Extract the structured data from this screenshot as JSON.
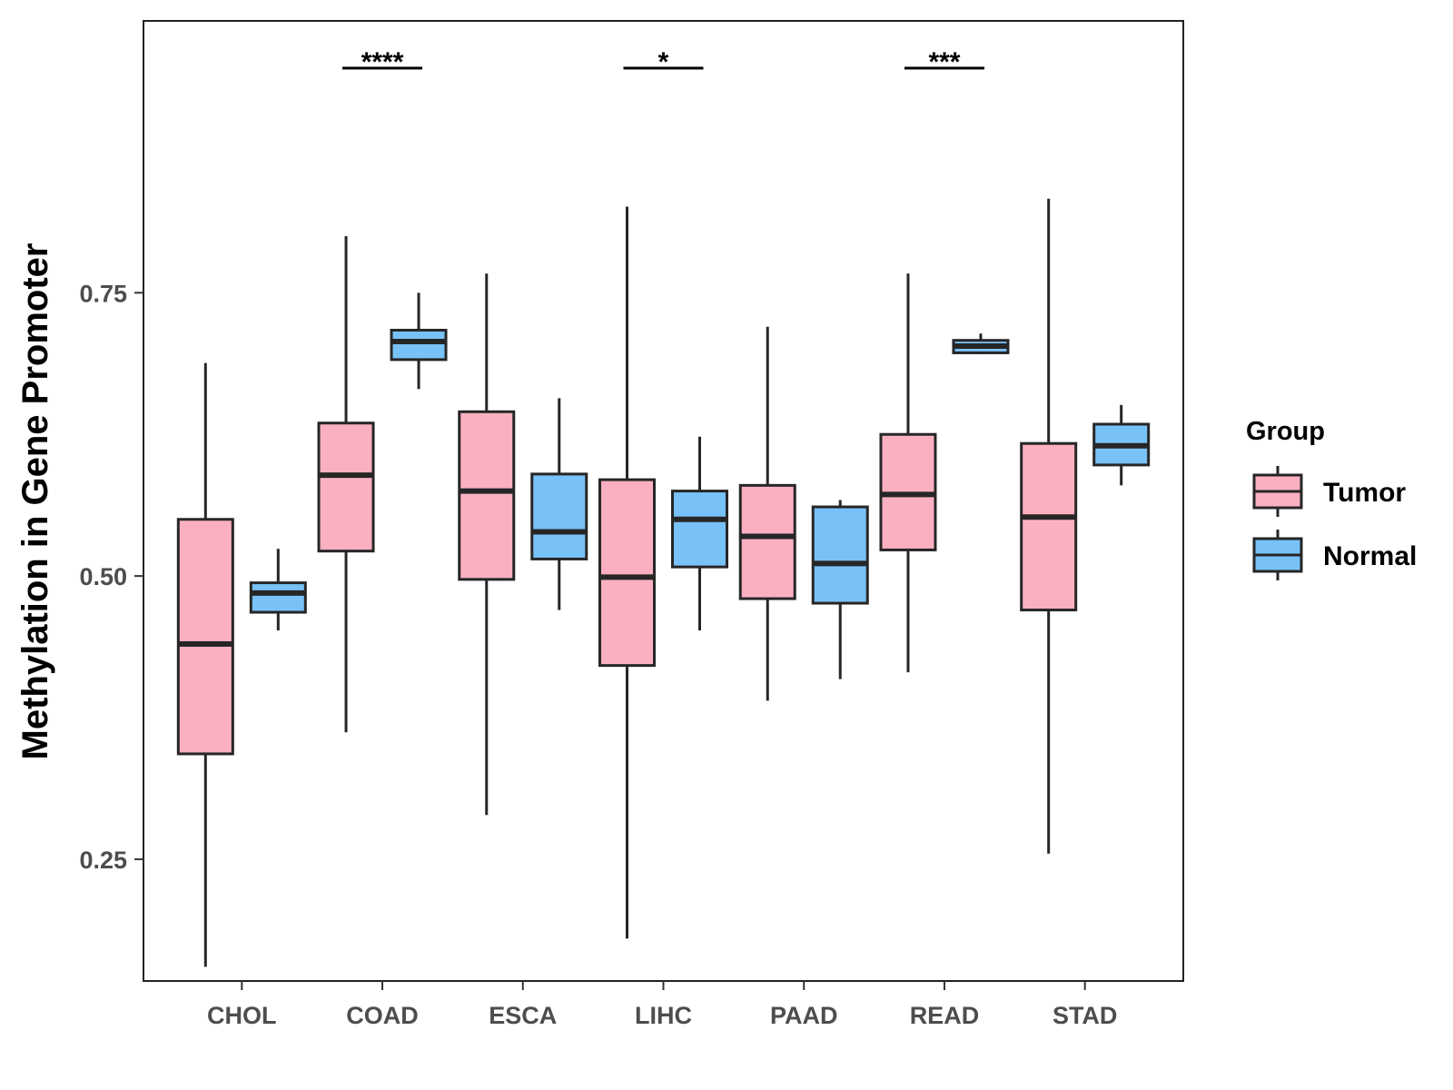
{
  "chart_data": {
    "type": "boxplot",
    "title": "",
    "xlabel": "",
    "ylabel": "Methylation in Gene Promoter",
    "ylim": [
      0.1425,
      0.99
    ],
    "yticks": [
      0.25,
      0.5,
      0.75
    ],
    "ytick_labels": [
      "0.25",
      "0.50",
      "0.75"
    ],
    "grid": false,
    "categories": [
      "CHOL",
      "COAD",
      "ESCA",
      "LIHC",
      "PAAD",
      "READ",
      "STAD"
    ],
    "legend": {
      "title": "Group",
      "position": "right",
      "entries": [
        {
          "name": "Tumor",
          "color": "#FBB0C2"
        },
        {
          "name": "Normal",
          "color": "#79C2F8"
        }
      ]
    },
    "series": [
      {
        "name": "Tumor",
        "color": "#FBB0C2",
        "boxes": [
          {
            "category": "CHOL",
            "min": 0.155,
            "q1": 0.343,
            "median": 0.44,
            "q3": 0.55,
            "max": 0.688
          },
          {
            "category": "COAD",
            "min": 0.362,
            "q1": 0.522,
            "median": 0.589,
            "q3": 0.635,
            "max": 0.8
          },
          {
            "category": "ESCA",
            "min": 0.289,
            "q1": 0.497,
            "median": 0.575,
            "q3": 0.645,
            "max": 0.767
          },
          {
            "category": "LIHC",
            "min": 0.18,
            "q1": 0.421,
            "median": 0.499,
            "q3": 0.585,
            "max": 0.826
          },
          {
            "category": "PAAD",
            "min": 0.39,
            "q1": 0.48,
            "median": 0.535,
            "q3": 0.58,
            "max": 0.72
          },
          {
            "category": "READ",
            "min": 0.415,
            "q1": 0.523,
            "median": 0.572,
            "q3": 0.625,
            "max": 0.767
          },
          {
            "category": "STAD",
            "min": 0.255,
            "q1": 0.47,
            "median": 0.552,
            "q3": 0.617,
            "max": 0.833
          }
        ]
      },
      {
        "name": "Normal",
        "color": "#79C2F8",
        "boxes": [
          {
            "category": "CHOL",
            "min": 0.452,
            "q1": 0.468,
            "median": 0.485,
            "q3": 0.494,
            "max": 0.524
          },
          {
            "category": "COAD",
            "min": 0.665,
            "q1": 0.691,
            "median": 0.707,
            "q3": 0.717,
            "max": 0.75
          },
          {
            "category": "ESCA",
            "min": 0.47,
            "q1": 0.515,
            "median": 0.539,
            "q3": 0.59,
            "max": 0.657
          },
          {
            "category": "LIHC",
            "min": 0.452,
            "q1": 0.508,
            "median": 0.55,
            "q3": 0.575,
            "max": 0.623
          },
          {
            "category": "PAAD",
            "min": 0.409,
            "q1": 0.476,
            "median": 0.511,
            "q3": 0.561,
            "max": 0.567
          },
          {
            "category": "READ",
            "min": 0.696,
            "q1": 0.697,
            "median": 0.703,
            "q3": 0.708,
            "max": 0.714
          },
          {
            "category": "STAD",
            "min": 0.58,
            "q1": 0.598,
            "median": 0.615,
            "q3": 0.634,
            "max": 0.651
          }
        ]
      }
    ],
    "annotations": [
      {
        "category": "COAD",
        "label": "****"
      },
      {
        "category": "LIHC",
        "label": "*"
      },
      {
        "category": "READ",
        "label": "***"
      }
    ]
  }
}
